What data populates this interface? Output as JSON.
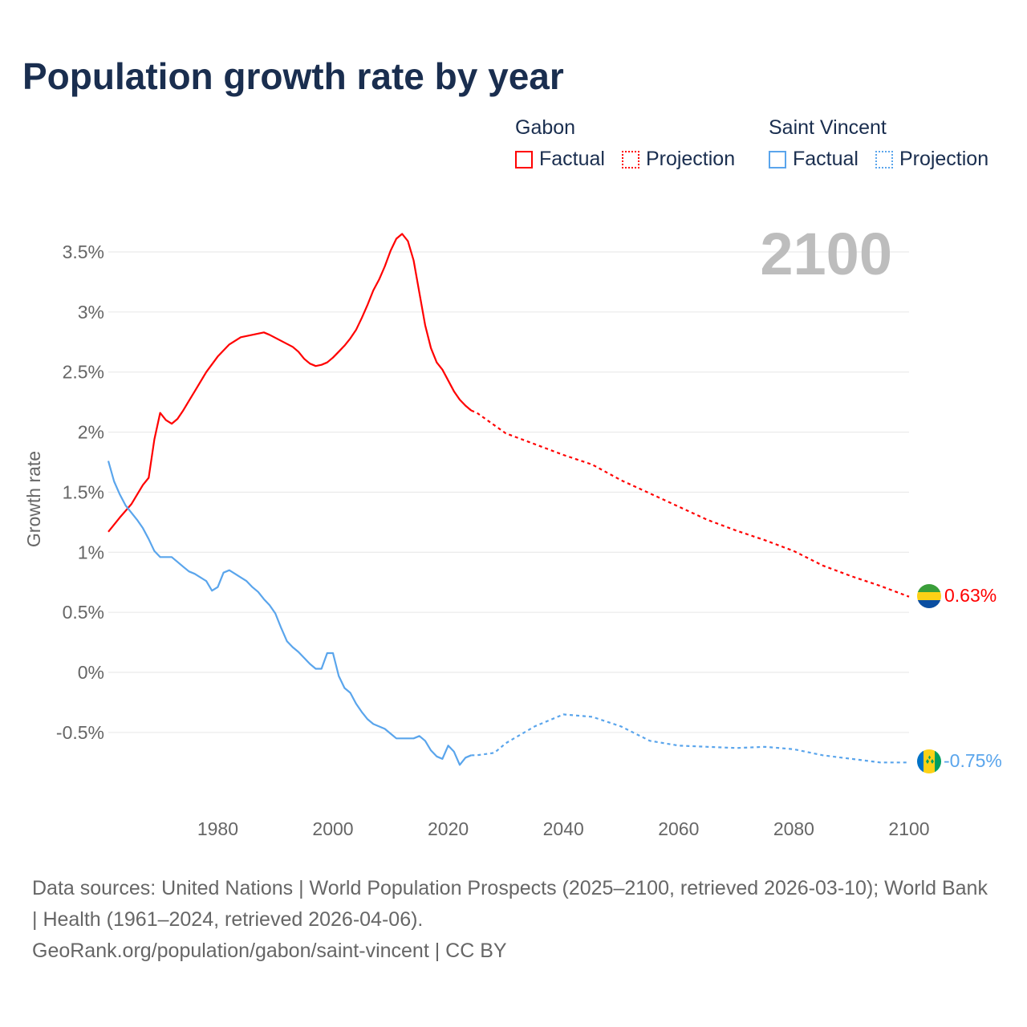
{
  "title": "Population growth rate by year",
  "legend": {
    "groups": [
      {
        "name": "Gabon",
        "factual": "Factual",
        "projection": "Projection",
        "color": "#ff0000"
      },
      {
        "name": "Saint Vincent",
        "factual": "Factual",
        "projection": "Projection",
        "color": "#5aa5ec"
      }
    ]
  },
  "year_watermark": "2100",
  "end_labels": {
    "gabon": "0.63%",
    "saint_vincent": "-0.75%"
  },
  "footer": {
    "sources": "Data sources: United Nations | World Population Prospects (2025–2100, retrieved 2026-03-10); World Bank | Health (1961–2024, retrieved 2026-04-06).",
    "credit": "GeoRank.org/population/gabon/saint-vincent | CC BY"
  },
  "chart_data": {
    "type": "line",
    "title": "Population growth rate by year",
    "xlabel": "",
    "ylabel": "Growth rate",
    "xlim": [
      1961,
      2100
    ],
    "ylim": [
      -1.0,
      3.7
    ],
    "x_ticks": [
      1980,
      2000,
      2020,
      2040,
      2060,
      2080,
      2100
    ],
    "x_tick_labels": [
      "1980",
      "2000",
      "2020",
      "2040",
      "2060",
      "2080",
      "2100"
    ],
    "y_ticks": [
      3.5,
      3,
      2.5,
      2,
      1.5,
      1,
      0.5,
      0,
      -0.5
    ],
    "y_tick_labels": [
      "3.5%",
      "3%",
      "2.5%",
      "2%",
      "1.5%",
      "1%",
      "0.5%",
      "0%",
      "-0.5%"
    ],
    "grid": true,
    "legend_position": "top-right",
    "series": [
      {
        "name": "Gabon Factual",
        "color": "#ff0000",
        "dash": false,
        "x": [
          1961,
          1963,
          1965,
          1967,
          1968,
          1969,
          1970,
          1971,
          1972,
          1973,
          1974,
          1975,
          1976,
          1978,
          1980,
          1982,
          1984,
          1986,
          1988,
          1989,
          1991,
          1993,
          1994,
          1995,
          1996,
          1997,
          1998,
          1999,
          2000,
          2001,
          2002,
          2003,
          2004,
          2005,
          2006,
          2007,
          2008,
          2009,
          2010,
          2011,
          2012,
          2013,
          2014,
          2015,
          2016,
          2017,
          2018,
          2019,
          2020,
          2021,
          2022,
          2023,
          2024
        ],
        "y": [
          1.17,
          1.29,
          1.4,
          1.56,
          1.62,
          1.94,
          2.16,
          2.1,
          2.07,
          2.11,
          2.18,
          2.26,
          2.34,
          2.5,
          2.63,
          2.73,
          2.79,
          2.81,
          2.83,
          2.81,
          2.76,
          2.71,
          2.67,
          2.61,
          2.57,
          2.55,
          2.56,
          2.58,
          2.62,
          2.67,
          2.72,
          2.78,
          2.85,
          2.95,
          3.06,
          3.18,
          3.27,
          3.38,
          3.51,
          3.61,
          3.65,
          3.59,
          3.43,
          3.16,
          2.89,
          2.7,
          2.58,
          2.52,
          2.43,
          2.34,
          2.27,
          2.22,
          2.18
        ]
      },
      {
        "name": "Gabon Projection",
        "color": "#ff0000",
        "dash": true,
        "x": [
          2024,
          2025,
          2030,
          2035,
          2040,
          2045,
          2050,
          2055,
          2060,
          2065,
          2070,
          2075,
          2080,
          2085,
          2090,
          2095,
          2100
        ],
        "y": [
          2.18,
          2.16,
          1.99,
          1.9,
          1.81,
          1.73,
          1.6,
          1.49,
          1.38,
          1.27,
          1.18,
          1.1,
          1.01,
          0.89,
          0.8,
          0.72,
          0.63
        ]
      },
      {
        "name": "Saint Vincent Factual",
        "color": "#5aa5ec",
        "dash": false,
        "x": [
          1961,
          1962,
          1963,
          1964,
          1966,
          1967,
          1968,
          1969,
          1970,
          1972,
          1973,
          1974,
          1975,
          1976,
          1977,
          1978,
          1979,
          1980,
          1981,
          1982,
          1983,
          1984,
          1985,
          1986,
          1987,
          1988,
          1989,
          1990,
          1991,
          1992,
          1993,
          1994,
          1995,
          1996,
          1997,
          1998,
          1999,
          2000,
          2001,
          2002,
          2003,
          2004,
          2005,
          2006,
          2007,
          2008,
          2009,
          2010,
          2011,
          2012,
          2013,
          2014,
          2015,
          2016,
          2017,
          2018,
          2019,
          2020,
          2021,
          2022,
          2023,
          2024
        ],
        "y": [
          1.76,
          1.59,
          1.48,
          1.39,
          1.27,
          1.2,
          1.11,
          1.01,
          0.96,
          0.96,
          0.92,
          0.88,
          0.84,
          0.82,
          0.79,
          0.76,
          0.68,
          0.71,
          0.83,
          0.85,
          0.82,
          0.79,
          0.76,
          0.71,
          0.67,
          0.61,
          0.56,
          0.49,
          0.37,
          0.26,
          0.21,
          0.17,
          0.12,
          0.07,
          0.03,
          0.03,
          0.16,
          0.16,
          -0.03,
          -0.13,
          -0.17,
          -0.26,
          -0.33,
          -0.39,
          -0.43,
          -0.45,
          -0.47,
          -0.51,
          -0.55,
          -0.55,
          -0.55,
          -0.55,
          -0.53,
          -0.57,
          -0.65,
          -0.7,
          -0.72,
          -0.61,
          -0.66,
          -0.77,
          -0.71,
          -0.69
        ]
      },
      {
        "name": "Saint Vincent Projection",
        "color": "#5aa5ec",
        "dash": true,
        "x": [
          2024,
          2025,
          2028,
          2030,
          2035,
          2040,
          2045,
          2050,
          2055,
          2060,
          2065,
          2070,
          2075,
          2080,
          2085,
          2090,
          2095,
          2100
        ],
        "y": [
          -0.69,
          -0.69,
          -0.67,
          -0.59,
          -0.45,
          -0.35,
          -0.37,
          -0.45,
          -0.57,
          -0.61,
          -0.62,
          -0.63,
          -0.62,
          -0.64,
          -0.69,
          -0.72,
          -0.75,
          -0.75
        ]
      }
    ]
  }
}
